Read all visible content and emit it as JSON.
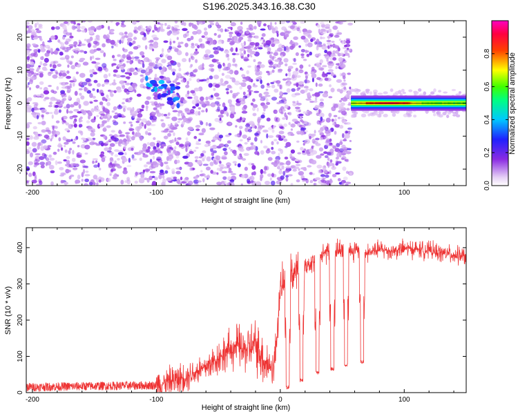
{
  "title": "S196.2025.343.16.38.C30",
  "chart_data": [
    {
      "type": "heatmap",
      "title": "S196.2025.343.16.38.C30",
      "xlabel": "Height of straight line (km)",
      "ylabel": "Frequency (Hz)",
      "xlim": [
        -205,
        150
      ],
      "ylim": [
        -25,
        25
      ],
      "xticks": [
        -200,
        -100,
        0,
        100
      ],
      "yticks": [
        -20,
        -10,
        0,
        10,
        20
      ],
      "colorbar": {
        "label": "Normalized spectral amplitude",
        "range": [
          0,
          1
        ],
        "ticks": [
          0.0,
          0.2,
          0.4,
          0.6,
          0.8
        ],
        "colormap": "rainbow (white-violet-blue-cyan-green-yellow-red-magenta)"
      },
      "noise_region_km": [
        -205,
        57
      ],
      "signal": {
        "start_km": 57,
        "end_km": 150,
        "frequency_hz": 0,
        "bandwidth_hz": 2,
        "peak_amplitude": 0.9
      },
      "blob_cluster": {
        "center_km": -95,
        "center_hz": 3,
        "amplitude": 0.35
      }
    },
    {
      "type": "line",
      "xlabel": "Height of straight line (km)",
      "ylabel": "SNR (10 * v/v)",
      "xlim": [
        -205,
        150
      ],
      "ylim": [
        0,
        455
      ],
      "xticks": [
        -200,
        -100,
        0,
        100
      ],
      "yticks": [
        0,
        100,
        200,
        300,
        400
      ],
      "series": [
        {
          "name": "SNR",
          "color": "#ee3333",
          "x": [
            -205,
            -150,
            -100,
            -90,
            -80,
            -70,
            -60,
            -50,
            -40,
            -35,
            -30,
            -25,
            -20,
            -15,
            -10,
            -5,
            0,
            5,
            10,
            15,
            20,
            25,
            30,
            35,
            40,
            45,
            50,
            55,
            60,
            65,
            70,
            80,
            90,
            100,
            110,
            120,
            130,
            140,
            150
          ],
          "y": [
            15,
            18,
            20,
            30,
            40,
            55,
            70,
            95,
            120,
            130,
            115,
            125,
            130,
            100,
            75,
            70,
            280,
            320,
            330,
            335,
            350,
            360,
            375,
            385,
            390,
            392,
            395,
            390,
            395,
            385,
            385,
            395,
            390,
            398,
            395,
            392,
            385,
            380,
            375
          ]
        }
      ],
      "dropouts": [
        {
          "center_km": 6,
          "min": 10
        },
        {
          "center_km": 17,
          "min": 30
        },
        {
          "center_km": 30,
          "min": 50
        },
        {
          "center_km": 42,
          "min": 60
        },
        {
          "center_km": 53,
          "min": 70
        },
        {
          "center_km": 66,
          "min": 80
        }
      ]
    }
  ]
}
